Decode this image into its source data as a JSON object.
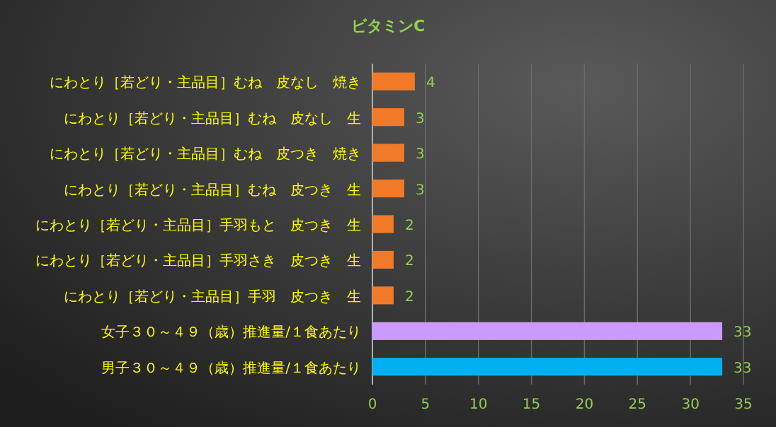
{
  "chart_data": {
    "type": "bar",
    "orientation": "horizontal",
    "title": "ビタミンC",
    "categories": [
      "にわとり［若どり・主品目］むね　皮なし　焼き",
      "にわとり［若どり・主品目］むね　皮なし　生",
      "にわとり［若どり・主品目］むね　皮つき　焼き",
      "にわとり［若どり・主品目］むね　皮つき　生",
      "にわとり［若どり・主品目］手羽もと　皮つき　生",
      "にわとり［若どり・主品目］手羽さき　皮つき　生",
      "にわとり［若どり・主品目］手羽　皮つき　生",
      "女子３０～４９（歳）推進量/１食あたり",
      "男子３０～４９（歳）推進量/１食あたり"
    ],
    "values": [
      4,
      3,
      3,
      3,
      2,
      2,
      2,
      33,
      33
    ],
    "colors": [
      "#f07a28",
      "#f07a28",
      "#f07a28",
      "#f07a28",
      "#f07a28",
      "#f07a28",
      "#f07a28",
      "#cc99ff",
      "#00b0f0"
    ],
    "xlim": [
      0,
      35
    ],
    "xticks": [
      0,
      5,
      10,
      15,
      20,
      25,
      30,
      35
    ],
    "grid": "x",
    "data_labels": true
  }
}
